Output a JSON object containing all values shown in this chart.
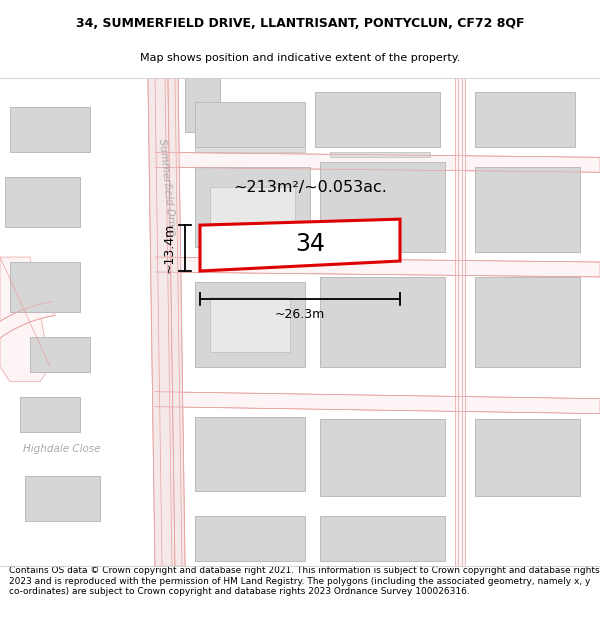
{
  "title": "34, SUMMERFIELD DRIVE, LLANTRISANT, PONTYCLUN, CF72 8QF",
  "subtitle": "Map shows position and indicative extent of the property.",
  "footer": "Contains OS data © Crown copyright and database right 2021. This information is subject to Crown copyright and database rights 2023 and is reproduced with the permission of HM Land Registry. The polygons (including the associated geometry, namely x, y co-ordinates) are subject to Crown copyright and database rights 2023 Ordnance Survey 100026316.",
  "title_fontsize": 9.0,
  "subtitle_fontsize": 8.0,
  "footer_fontsize": 6.5,
  "map_bg": "#ffffff",
  "road_line_color": "#e8a0a0",
  "road_fill": "#ffffff",
  "building_fill": "#d6d6d6",
  "building_edge": "#bbbbbb",
  "highlight_color": "#dd0000",
  "area_label": "~213m²/~0.053ac.",
  "property_label": "34",
  "width_label": "~26.3m",
  "height_label": "~13.4m",
  "street_label": "Summerfield Drive",
  "street_label2": "Highdale Close"
}
